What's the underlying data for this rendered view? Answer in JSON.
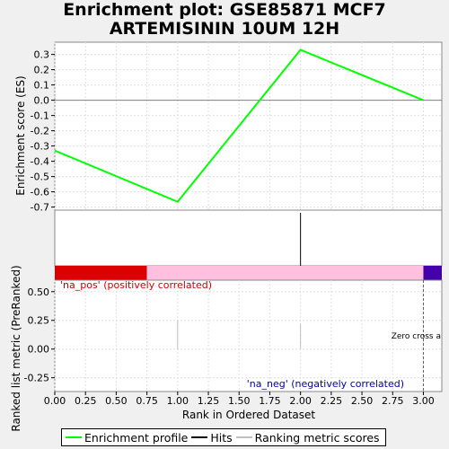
{
  "title": "Enrichment plot: GSE85871 MCF7 ARTEMISININ 10UM 12H",
  "colors": {
    "enrichment_line": "#00ff00",
    "hits": "#000000",
    "ranking": "#c0c0c0",
    "pos_bar": "#dd0000",
    "mid_bar": "#ffc0e0",
    "neg_bar": "#4400aa",
    "pos_label": "#cc0000",
    "neg_label": "#0000aa",
    "zero_cross": "#606060"
  },
  "chart_data": [
    {
      "type": "line",
      "name": "enrichment-profile",
      "ylabel": "Enrichment score (ES)",
      "x": [
        0,
        1,
        2,
        3
      ],
      "series": [
        {
          "name": "Enrichment profile",
          "values": [
            -0.33,
            -0.665,
            0.33,
            0.0
          ]
        }
      ],
      "xlim": [
        0,
        3.15
      ],
      "ylim": [
        -0.72,
        0.38
      ],
      "yticks": [
        "0.3",
        "0.2",
        "0.1",
        "0.0",
        "-0.1",
        "-0.2",
        "-0.3",
        "-0.4",
        "-0.5",
        "-0.6",
        "-0.7"
      ],
      "ytick_values": [
        0.3,
        0.2,
        0.1,
        0.0,
        -0.1,
        -0.2,
        -0.3,
        -0.4,
        -0.5,
        -0.6,
        -0.7
      ],
      "grid": true
    },
    {
      "type": "bar",
      "name": "hits",
      "series": [
        {
          "name": "Hits",
          "values": [
            2
          ]
        }
      ]
    },
    {
      "type": "bar",
      "name": "ranking-metric",
      "xlabel": "Rank in Ordered Dataset",
      "ylabel": "Ranked list metric (PreRanked)",
      "x": [
        1,
        2
      ],
      "series": [
        {
          "name": "Ranking metric scores",
          "values": [
            0.25,
            0.22
          ]
        }
      ],
      "xlim": [
        0,
        3.15
      ],
      "ylim": [
        -0.37,
        0.6
      ],
      "yticks": [
        "0.50",
        "0.25",
        "0.00",
        "-0.25"
      ],
      "ytick_values": [
        0.5,
        0.25,
        0.0,
        -0.25
      ],
      "xticks": [
        "0.00",
        "0.25",
        "0.50",
        "0.75",
        "1.00",
        "1.25",
        "1.50",
        "1.75",
        "2.00",
        "2.25",
        "2.50",
        "2.75",
        "3.00"
      ],
      "xtick_values": [
        0,
        0.25,
        0.5,
        0.75,
        1.0,
        1.25,
        1.5,
        1.75,
        2.0,
        2.25,
        2.5,
        2.75,
        3.0
      ],
      "color_bar": [
        {
          "from": 0,
          "to": 0.75,
          "color": "#dd0000"
        },
        {
          "from": 0.75,
          "to": 3.0,
          "color": "#ffc0e0"
        },
        {
          "from": 3.0,
          "to": 3.15,
          "color": "#4400aa"
        }
      ],
      "zero_cross": 3.0,
      "annotations": {
        "pos_label": "'na_pos' (positively correlated)",
        "neg_label": "'na_neg' (negatively correlated)",
        "zero_cross_label": "Zero cross a"
      },
      "grid": true
    }
  ],
  "legend": {
    "items": [
      "Enrichment profile",
      "Hits",
      "Ranking metric scores"
    ]
  }
}
